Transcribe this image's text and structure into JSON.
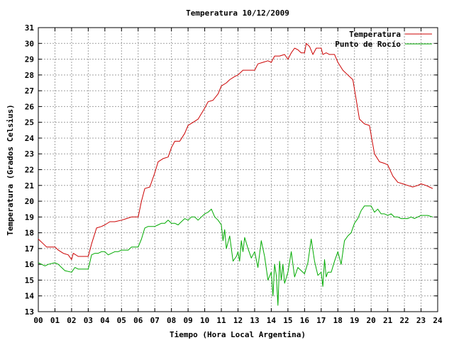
{
  "chart_data": {
    "type": "line",
    "title": "Temperatura 10/12/2009",
    "xlabel": "Tiempo (Hora Local Argentina)",
    "ylabel": "Temperatura (Grados Celsius)",
    "xlim": [
      0,
      24
    ],
    "ylim": [
      13,
      31
    ],
    "grid": true,
    "legend_position": "top-right",
    "x_ticks": [
      "00",
      "01",
      "02",
      "03",
      "04",
      "05",
      "06",
      "07",
      "08",
      "09",
      "10",
      "11",
      "12",
      "13",
      "14",
      "15",
      "16",
      "17",
      "18",
      "19",
      "20",
      "21",
      "22",
      "23",
      "24"
    ],
    "y_ticks": [
      13,
      14,
      15,
      16,
      17,
      18,
      19,
      20,
      21,
      22,
      23,
      24,
      25,
      26,
      27,
      28,
      29,
      30,
      31
    ],
    "series": [
      {
        "name": "Temperatura",
        "color": "#cc0000",
        "x": [
          0,
          0.3,
          0.5,
          1.0,
          1.2,
          1.5,
          1.8,
          2.0,
          2.1,
          2.4,
          2.7,
          3.0,
          3.2,
          3.5,
          3.8,
          4.0,
          4.3,
          4.6,
          5.0,
          5.3,
          5.6,
          6.0,
          6.2,
          6.4,
          6.7,
          7.0,
          7.2,
          7.5,
          7.8,
          8.0,
          8.2,
          8.5,
          8.8,
          9.0,
          9.3,
          9.6,
          10.0,
          10.2,
          10.5,
          10.8,
          11.0,
          11.3,
          11.5,
          11.8,
          12.0,
          12.3,
          12.6,
          13.0,
          13.2,
          13.5,
          13.8,
          14.0,
          14.2,
          14.5,
          14.8,
          15.0,
          15.2,
          15.4,
          15.6,
          15.8,
          16.0,
          16.1,
          16.3,
          16.5,
          16.7,
          17.0,
          17.1,
          17.3,
          17.5,
          17.8,
          18.0,
          18.3,
          18.6,
          18.9,
          19.0,
          19.3,
          19.6,
          19.9,
          20.2,
          20.5,
          20.8,
          21.0,
          21.3,
          21.6,
          21.9,
          22.2,
          22.5,
          22.8,
          23.0,
          23.3,
          23.5,
          23.7
        ],
        "y": [
          17.6,
          17.3,
          17.1,
          17.1,
          16.9,
          16.7,
          16.6,
          16.3,
          16.7,
          16.5,
          16.5,
          16.5,
          17.3,
          18.3,
          18.4,
          18.5,
          18.7,
          18.7,
          18.8,
          18.9,
          19.0,
          19.0,
          20.0,
          20.8,
          20.9,
          21.8,
          22.5,
          22.7,
          22.8,
          23.4,
          23.8,
          23.8,
          24.3,
          24.8,
          25.0,
          25.2,
          25.9,
          26.3,
          26.4,
          26.8,
          27.3,
          27.5,
          27.7,
          27.9,
          28.0,
          28.3,
          28.3,
          28.3,
          28.7,
          28.8,
          28.9,
          28.8,
          29.2,
          29.2,
          29.3,
          29.0,
          29.4,
          29.7,
          29.6,
          29.4,
          29.4,
          30.0,
          29.8,
          29.3,
          29.7,
          29.7,
          29.3,
          29.4,
          29.3,
          29.3,
          28.8,
          28.3,
          28.0,
          27.7,
          27.1,
          25.2,
          24.9,
          24.8,
          23.0,
          22.5,
          22.4,
          22.3,
          21.6,
          21.2,
          21.1,
          21.0,
          20.9,
          21.0,
          21.1,
          21.0,
          20.9,
          20.8
        ]
      },
      {
        "name": "Punto de Rocío",
        "color": "#00aa00",
        "x": [
          0,
          0.2,
          0.4,
          0.6,
          1.0,
          1.2,
          1.4,
          1.6,
          2.0,
          2.2,
          2.4,
          2.6,
          3.0,
          3.2,
          3.4,
          3.6,
          3.8,
          4.0,
          4.2,
          4.4,
          4.6,
          4.8,
          5.0,
          5.2,
          5.4,
          5.6,
          5.8,
          6.0,
          6.2,
          6.4,
          6.6,
          6.8,
          7.0,
          7.2,
          7.4,
          7.6,
          7.8,
          8.0,
          8.2,
          8.4,
          8.6,
          8.8,
          9.0,
          9.2,
          9.4,
          9.6,
          9.8,
          10.0,
          10.2,
          10.4,
          10.6,
          10.8,
          11.0,
          11.1,
          11.2,
          11.3,
          11.5,
          11.7,
          11.9,
          12.0,
          12.1,
          12.2,
          12.3,
          12.4,
          12.6,
          12.8,
          13.0,
          13.2,
          13.4,
          13.6,
          13.8,
          14.0,
          14.1,
          14.2,
          14.3,
          14.4,
          14.5,
          14.6,
          14.7,
          14.8,
          15.0,
          15.2,
          15.4,
          15.6,
          15.8,
          16.0,
          16.2,
          16.4,
          16.6,
          16.8,
          17.0,
          17.1,
          17.2,
          17.3,
          17.4,
          17.6,
          17.8,
          18.0,
          18.2,
          18.4,
          18.6,
          18.8,
          19.0,
          19.2,
          19.4,
          19.6,
          19.8,
          20.0,
          20.2,
          20.4,
          20.6,
          20.8,
          21.0,
          21.2,
          21.4,
          21.6,
          21.8,
          22.0,
          22.2,
          22.4,
          22.6,
          22.8,
          23.0,
          23.2,
          23.4,
          23.7
        ],
        "y": [
          16.1,
          16.0,
          15.9,
          16.0,
          16.1,
          16.0,
          15.8,
          15.6,
          15.5,
          15.8,
          15.7,
          15.7,
          15.7,
          16.6,
          16.7,
          16.7,
          16.8,
          16.8,
          16.6,
          16.7,
          16.8,
          16.8,
          16.9,
          16.9,
          16.9,
          17.1,
          17.1,
          17.1,
          17.6,
          18.3,
          18.4,
          18.4,
          18.4,
          18.5,
          18.6,
          18.6,
          18.8,
          18.6,
          18.6,
          18.5,
          18.7,
          18.9,
          18.8,
          19.0,
          19.0,
          18.8,
          19.0,
          19.2,
          19.3,
          19.5,
          19.0,
          18.8,
          18.5,
          17.5,
          18.2,
          17.0,
          17.8,
          16.2,
          16.5,
          16.8,
          16.2,
          17.5,
          16.8,
          17.7,
          17.0,
          16.4,
          16.8,
          15.8,
          17.5,
          16.5,
          15.0,
          15.5,
          14.0,
          16.0,
          15.3,
          13.4,
          16.2,
          15.0,
          16.0,
          14.8,
          15.5,
          16.8,
          15.2,
          15.8,
          15.6,
          15.4,
          16.1,
          17.6,
          16.2,
          15.3,
          15.5,
          14.6,
          16.3,
          15.2,
          15.5,
          15.5,
          16.2,
          16.8,
          16.0,
          17.5,
          17.8,
          18.0,
          18.6,
          18.9,
          19.4,
          19.7,
          19.7,
          19.7,
          19.3,
          19.5,
          19.2,
          19.2,
          19.1,
          19.2,
          19.0,
          19.0,
          18.9,
          18.9,
          18.9,
          19.0,
          18.9,
          19.0,
          19.1,
          19.1,
          19.1,
          19.0
        ]
      }
    ]
  }
}
